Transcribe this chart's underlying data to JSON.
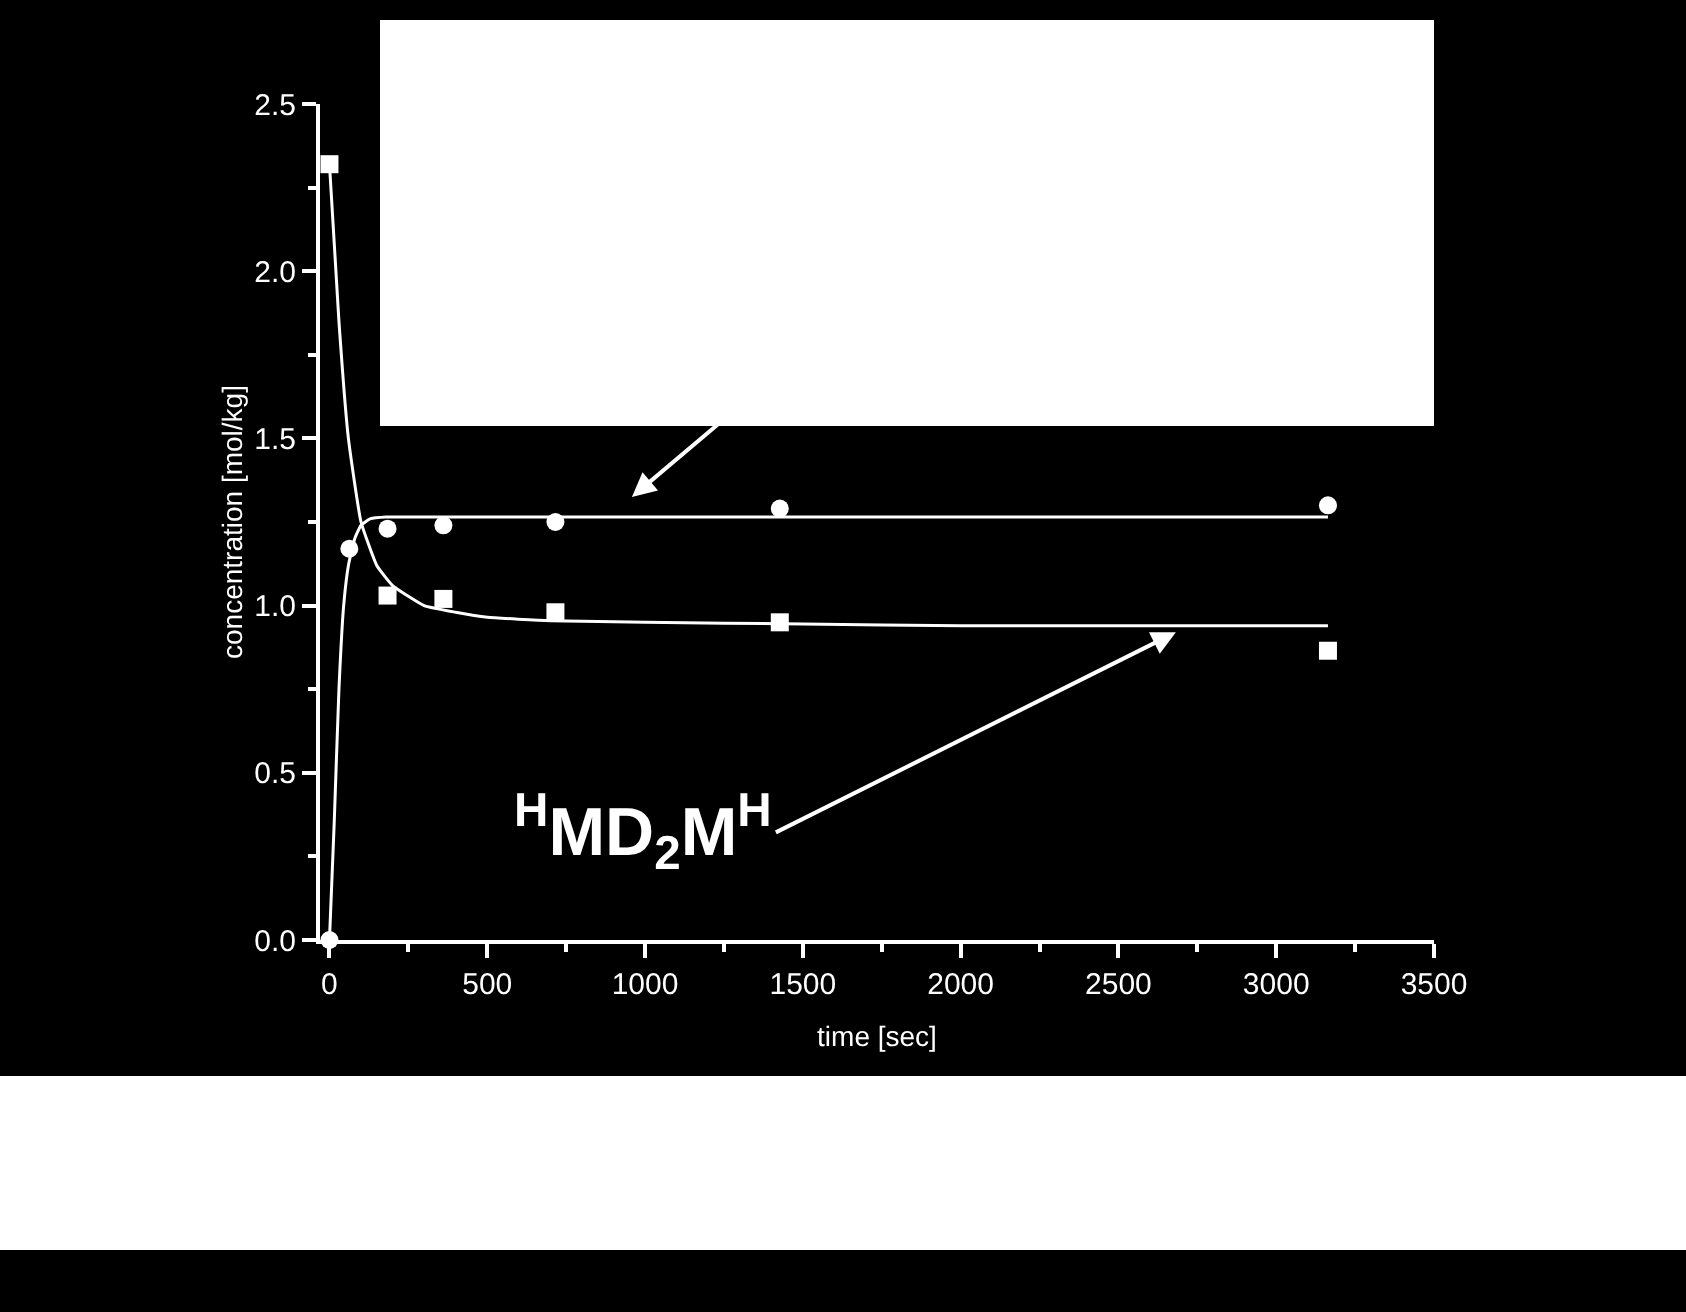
{
  "chart_data": {
    "type": "scatter",
    "xlabel": "time [sec]",
    "ylabel": "concentration [mol/kg]",
    "xlim": [
      -30,
      3500
    ],
    "ylim": [
      0,
      2.5
    ],
    "xticks": [
      0,
      500,
      1000,
      1500,
      2000,
      2500,
      3000,
      3500
    ],
    "yticks": [
      {
        "value": 0,
        "label": "0.0"
      },
      {
        "value": 0.5,
        "label": "0.5"
      },
      {
        "value": 1,
        "label": "1.0"
      },
      {
        "value": 1.5,
        "label": "1.5"
      },
      {
        "value": 2,
        "label": "2.0"
      },
      {
        "value": 2.5,
        "label": "2.5"
      }
    ],
    "annotations": [
      {
        "text": "$^{H}$MD$_{2}$M$^{H}$",
        "x": 2682,
        "y": 0.92
      }
    ],
    "series": [
      {
        "type": "scatter",
        "marker": "square",
        "color": "#ffffff",
        "x": [
          0,
          184,
          361,
          716,
          1427,
          3164
        ],
        "values": [
          2.32,
          1.03,
          1.02,
          0.98,
          0.95,
          0.865
        ]
      },
      {
        "type": "scatter",
        "marker": "circle",
        "color": "#ffffff",
        "x": [
          0,
          63,
          184,
          361,
          716,
          1427,
          3164
        ],
        "values": [
          0,
          1.17,
          1.23,
          1.24,
          1.25,
          1.29,
          1.3
        ]
      },
      {
        "type": "line",
        "marker": "none",
        "color": "#ffffff",
        "x": [
          0,
          30,
          60,
          100,
          150,
          200,
          300,
          400,
          500,
          700,
          1000,
          1500,
          2000,
          3164
        ],
        "values": [
          2.32,
          1.85,
          1.5,
          1.25,
          1.12,
          1.06,
          1.0,
          0.98,
          0.965,
          0.955,
          0.95,
          0.945,
          0.94,
          0.94
        ]
      },
      {
        "type": "line",
        "marker": "none",
        "color": "#ffffff",
        "x": [
          0,
          15,
          30,
          45,
          60,
          80,
          100,
          130,
          180,
          300,
          3164
        ],
        "values": [
          0,
          0.35,
          0.75,
          1.0,
          1.12,
          1.2,
          1.24,
          1.26,
          1.265,
          1.265,
          1.265
        ]
      }
    ]
  }
}
